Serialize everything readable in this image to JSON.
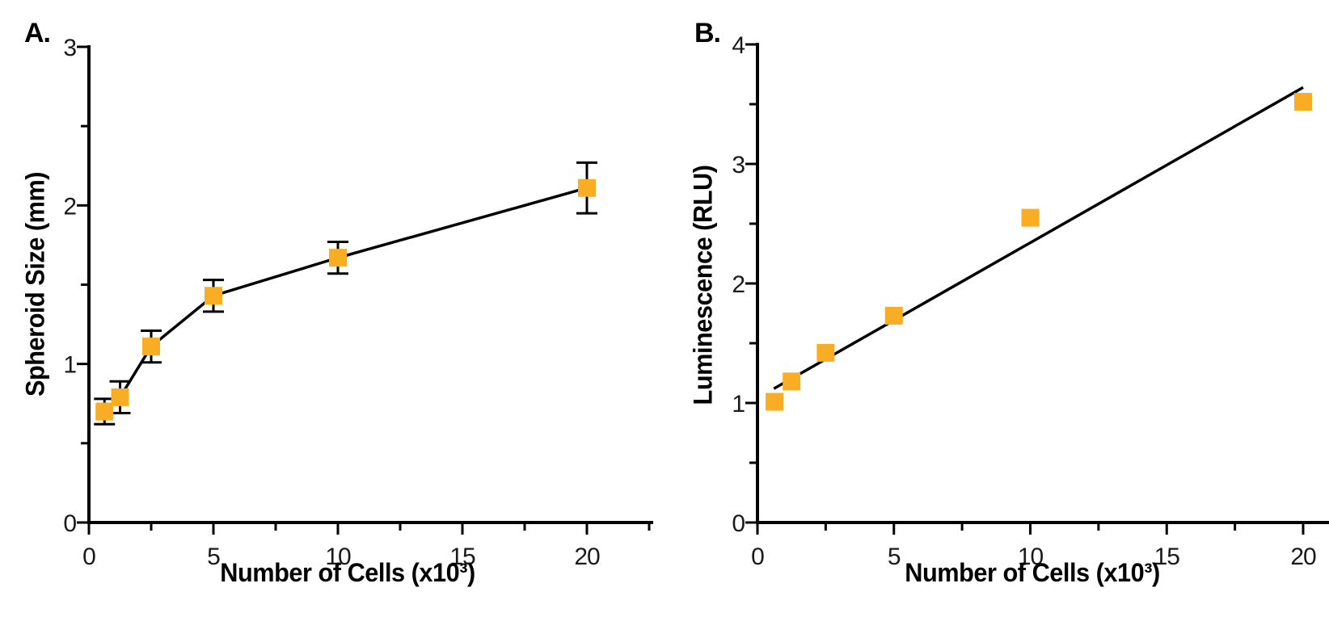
{
  "figure": {
    "background": "#ffffff",
    "axis_color": "#000000",
    "text_color": "#1a1a1a",
    "marker_color": "#F9AD25"
  },
  "chart_data": [
    {
      "type": "scatter",
      "panel_label": "A.",
      "xlabel": "Number of Cells (x10³)",
      "ylabel": "Spheroid Size (mm)",
      "x": [
        0.625,
        1.25,
        2.5,
        5,
        10,
        20
      ],
      "y": [
        0.7,
        0.79,
        1.11,
        1.43,
        1.67,
        2.11
      ],
      "yerr": [
        0.08,
        0.1,
        0.1,
        0.1,
        0.1,
        0.16
      ],
      "connect_points": true,
      "marker": "square",
      "marker_color": "#F9AD25",
      "xlim": [
        0,
        22.6
      ],
      "ylim": [
        0,
        3
      ],
      "xticks_major": [
        0,
        5,
        10,
        15,
        20
      ],
      "xticks_minor": [
        2.5,
        7.5,
        12.5,
        17.5,
        22.5
      ],
      "yticks_major": [
        0,
        1,
        2,
        3
      ],
      "yticks_minor": [
        0.5,
        1.5,
        2.5
      ],
      "grid": false,
      "legend": "none"
    },
    {
      "type": "scatter",
      "panel_label": "B.",
      "xlabel": "Number of Cells (x10³)",
      "ylabel": "Luminescence (RLU)",
      "x": [
        0.625,
        1.25,
        2.5,
        5,
        10,
        20
      ],
      "y": [
        1.01,
        1.18,
        1.42,
        1.73,
        2.55,
        3.52
      ],
      "fit_line": {
        "x1": 0.6,
        "y1": 1.12,
        "x2": 20.0,
        "y2": 3.64
      },
      "marker": "square",
      "marker_color": "#F9AD25",
      "xlim": [
        0,
        20.9
      ],
      "ylim": [
        0,
        4
      ],
      "xticks_major": [
        0,
        5,
        10,
        15,
        20
      ],
      "xticks_minor": [
        2.5,
        7.5,
        12.5,
        17.5
      ],
      "yticks_major": [
        0,
        1,
        2,
        3,
        4
      ],
      "yticks_minor": [
        0.5,
        1.5,
        2.5,
        3.5
      ],
      "grid": false,
      "legend": "none"
    }
  ]
}
